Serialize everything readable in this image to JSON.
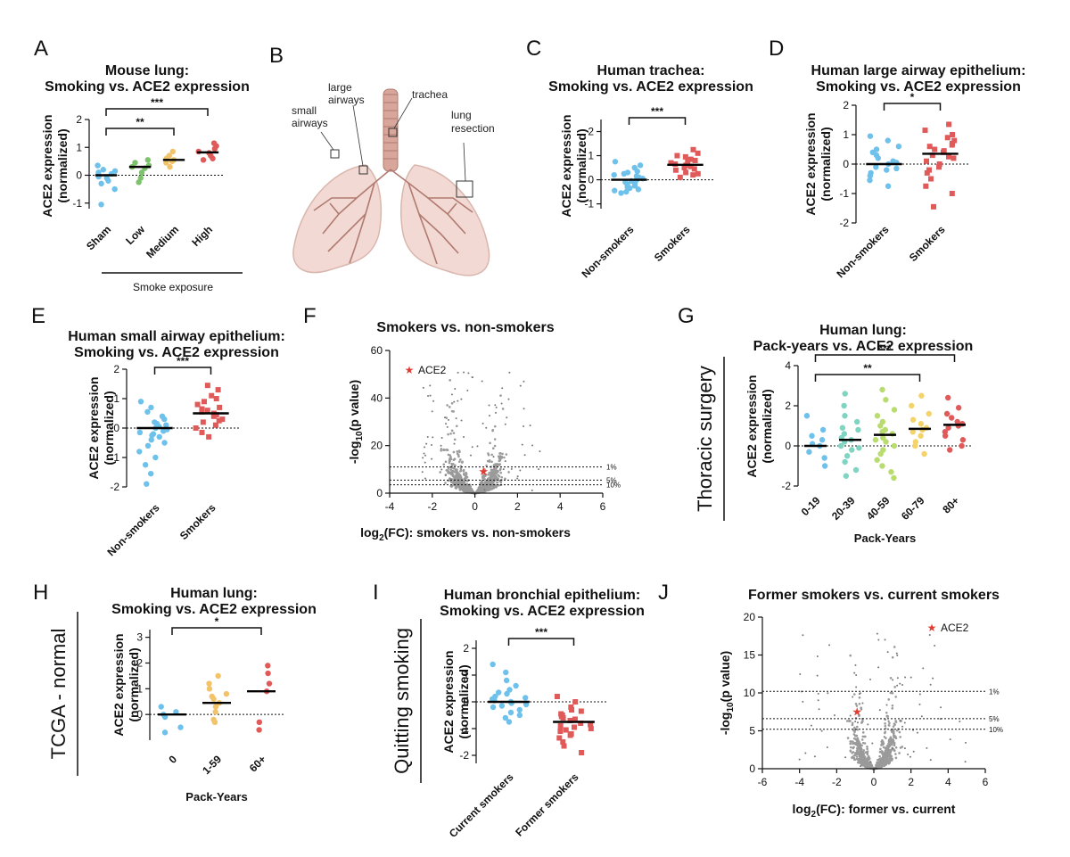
{
  "panels": [
    {
      "id": "A",
      "letter": "A",
      "type": "dot",
      "title": [
        "Mouse lung:",
        "Smoking vs. ACE2 expression"
      ],
      "ylabel": [
        "ACE2 expression",
        "(normalized)"
      ],
      "ylim": [
        -1.2,
        2
      ],
      "yticks": [
        -1,
        0,
        1,
        2
      ],
      "categories": [
        "Sham",
        "Low",
        "Medium",
        "High"
      ],
      "colors": [
        "#6ec1ea",
        "#7cc36b",
        "#f3c36a",
        "#e05a5a"
      ],
      "medians": [
        0,
        0.3,
        0.55,
        0.82
      ],
      "points": [
        [
          0.35,
          0.2,
          0.1,
          0.05,
          -0.05,
          -0.1,
          -0.2,
          -0.3,
          -0.5,
          -1.05,
          0.15
        ],
        [
          0.55,
          0.45,
          0.35,
          0.3,
          0.25,
          0.1,
          -0.1,
          -0.25
        ],
        [
          0.85,
          0.7,
          0.6,
          0.55,
          0.5,
          0.45,
          0.3
        ],
        [
          1.15,
          1.05,
          0.95,
          0.85,
          0.8,
          0.7,
          0.6,
          0.55
        ]
      ],
      "markers": "circle",
      "sig": [
        {
          "from": 0,
          "to": 2,
          "label": "**"
        },
        {
          "from": 0,
          "to": 3,
          "label": "***"
        }
      ],
      "group": "Smoke exposure",
      "xlabel": "",
      "side": ""
    },
    {
      "id": "C",
      "letter": "C",
      "type": "dot",
      "title": [
        "Human trachea:",
        "Smoking vs. ACE2 expression"
      ],
      "ylabel": [
        "ACE2 expression",
        "(normalized)"
      ],
      "ylim": [
        -1.2,
        2.5
      ],
      "yticks": [
        -1,
        0,
        1,
        2
      ],
      "categories": [
        "Non-smokers",
        "Smokers"
      ],
      "colors": [
        "#6ec1ea",
        "#e05a5a"
      ],
      "medians": [
        0,
        0.62
      ],
      "points": [
        [
          0.75,
          0.6,
          0.5,
          0.35,
          0.3,
          0.2,
          0.15,
          0.05,
          0,
          -0.05,
          -0.1,
          -0.15,
          -0.2,
          -0.25,
          -0.3,
          -0.35,
          -0.4,
          -0.45,
          0.1,
          -0.5,
          -0.55,
          0.25
        ],
        [
          1.25,
          1.1,
          1,
          0.95,
          0.85,
          0.8,
          0.75,
          0.7,
          0.65,
          0.6,
          0.55,
          0.5,
          0.45,
          0.4,
          0.3,
          0.25,
          0.2,
          0.1
        ]
      ],
      "markers": "circle-square",
      "sig": [
        {
          "from": 0,
          "to": 1,
          "label": "***"
        }
      ],
      "group": "",
      "xlabel": "",
      "side": ""
    },
    {
      "id": "D",
      "letter": "D",
      "type": "dot",
      "title": [
        "Human large airway epithelium:",
        "Smoking vs. ACE2 expression"
      ],
      "ylabel": [
        "ACE2 expression",
        "(normalized)"
      ],
      "ylim": [
        -2,
        2
      ],
      "yticks": [
        -2,
        -1,
        0,
        1,
        2
      ],
      "categories": [
        "Non-smokers",
        "Smokers"
      ],
      "colors": [
        "#6ec1ea",
        "#e05a5a"
      ],
      "medians": [
        0,
        0.35
      ],
      "points": [
        [
          0.95,
          0.8,
          0.6,
          0.5,
          0.4,
          0.3,
          0.2,
          0.1,
          0,
          -0.1,
          -0.2,
          -0.3,
          -0.4,
          -0.55,
          -0.75,
          0.05,
          -0.15
        ],
        [
          1.35,
          1.15,
          1,
          0.9,
          0.8,
          0.7,
          0.6,
          0.5,
          0.45,
          0.4,
          0.3,
          0.2,
          0.1,
          0,
          -0.1,
          -0.2,
          -0.3,
          -0.5,
          -0.75,
          -1,
          -1.45,
          0.65,
          0.25
        ]
      ],
      "markers": "circle-square",
      "sig": [
        {
          "from": 0,
          "to": 1,
          "label": "*"
        }
      ],
      "group": "",
      "xlabel": "",
      "side": ""
    },
    {
      "id": "E",
      "letter": "E",
      "type": "dot",
      "title": [
        "Human small airway epithelium:",
        "Smoking vs. ACE2 expression"
      ],
      "ylabel": [
        "ACE2 expression",
        "(normalized)"
      ],
      "ylim": [
        -2,
        2
      ],
      "yticks": [
        -2,
        -1,
        0,
        1,
        2
      ],
      "categories": [
        "Non-smokers",
        "Smokers"
      ],
      "colors": [
        "#6ec1ea",
        "#e05a5a"
      ],
      "medians": [
        0,
        0.5
      ],
      "points": [
        [
          0.9,
          0.7,
          0.55,
          0.4,
          0.3,
          0.2,
          0.1,
          0.05,
          0,
          -0.05,
          -0.1,
          -0.2,
          -0.3,
          -0.4,
          -0.5,
          -0.6,
          -0.8,
          -1,
          -1.25,
          -1.55,
          -1.9,
          0.15,
          -0.15,
          -0.25
        ],
        [
          1.45,
          1.3,
          1.1,
          1,
          0.9,
          0.8,
          0.7,
          0.6,
          0.5,
          0.45,
          0.4,
          0.3,
          0.2,
          0.1,
          0,
          -0.15,
          -0.3,
          0.55,
          0.25,
          0.65
        ]
      ],
      "markers": "circle-square",
      "sig": [
        {
          "from": 0,
          "to": 1,
          "label": "***"
        }
      ],
      "group": "",
      "xlabel": "",
      "side": ""
    },
    {
      "id": "G",
      "letter": "G",
      "type": "dot",
      "title": [
        "Human lung:",
        "Pack-years vs. ACE2 expression"
      ],
      "ylabel": [
        "ACE2 expression",
        "(normalized)"
      ],
      "ylim": [
        -2,
        4
      ],
      "yticks": [
        -2,
        0,
        2,
        4
      ],
      "categories": [
        "0-19",
        "20-39",
        "40-59",
        "60-79",
        "80+"
      ],
      "colors": [
        "#6ec1ea",
        "#7fd4c2",
        "#b9dc6e",
        "#f3d36a",
        "#e05a5a"
      ],
      "medians": [
        0,
        0.3,
        0.55,
        0.85,
        1.05
      ],
      "points": [
        [
          1.5,
          0.8,
          0.3,
          0,
          -0.3,
          -0.6,
          -1,
          0.1,
          0.5
        ],
        [
          2.6,
          2,
          1.5,
          1.2,
          0.9,
          0.6,
          0.4,
          0.2,
          0,
          -0.2,
          -0.5,
          -0.8,
          -1.2,
          -1.5,
          0.8,
          0.3,
          -0.1
        ],
        [
          2.8,
          2.3,
          1.8,
          1.5,
          1.2,
          1,
          0.8,
          0.6,
          0.4,
          0.2,
          0,
          -0.2,
          -0.4,
          -0.7,
          -1,
          -1.3,
          -1.6,
          0.7,
          0.3
        ],
        [
          2.5,
          2,
          1.6,
          1.3,
          1.1,
          0.9,
          0.7,
          0.5,
          0.2,
          0,
          -0.4,
          0.8
        ],
        [
          2.4,
          1.9,
          1.6,
          1.4,
          1.2,
          1,
          0.9,
          0.7,
          0.5,
          0.3,
          0,
          -0.2,
          1.1
        ]
      ],
      "markers": "circle",
      "sig": [
        {
          "from": 0,
          "to": 3,
          "label": "**"
        },
        {
          "from": 0,
          "to": 4,
          "label": "***"
        }
      ],
      "group": "",
      "xlabel": "Pack-Years",
      "side": "Thoracic surgery"
    },
    {
      "id": "H",
      "letter": "H",
      "type": "dot",
      "title": [
        "Human lung:",
        "Smoking vs. ACE2 expression"
      ],
      "ylabel": [
        "ACE2 expression",
        "(normalized)"
      ],
      "ylim": [
        -1,
        3.3
      ],
      "yticks": [
        0,
        1,
        2,
        3
      ],
      "categories": [
        "0",
        "1-59",
        "60+"
      ],
      "colors": [
        "#6ec1ea",
        "#f3c36a",
        "#e05a5a"
      ],
      "medians": [
        0,
        0.45,
        0.9
      ],
      "points": [
        [
          0.3,
          0.1,
          0,
          -0.1,
          -0.5,
          -0.7
        ],
        [
          1.5,
          1.2,
          1,
          0.8,
          0.6,
          0.45,
          0.3,
          0.1,
          -0.2,
          -0.3,
          0.7
        ],
        [
          1.9,
          1.6,
          1.2,
          0.9,
          -0.3,
          -0.6
        ]
      ],
      "markers": "circle",
      "sig": [
        {
          "from": 0,
          "to": 2,
          "label": "*"
        }
      ],
      "group": "",
      "xlabel": "Pack-Years",
      "side": "TCGA - normal"
    },
    {
      "id": "I",
      "letter": "I",
      "type": "dot",
      "title": [
        "Human bronchial epithelium:",
        "Smoking vs. ACE2 expression"
      ],
      "ylabel": [
        "ACE2 expression",
        "(normalized)"
      ],
      "ylim": [
        -2.3,
        2.3
      ],
      "yticks": [
        -2,
        -1,
        0,
        1,
        2
      ],
      "categories": [
        "Current smokers",
        "Former smokers"
      ],
      "colors": [
        "#6ec1ea",
        "#e05a5a"
      ],
      "medians": [
        0,
        -0.75
      ],
      "points": [
        [
          1.4,
          1.1,
          0.8,
          0.6,
          0.45,
          0.3,
          0.2,
          0.1,
          0.05,
          0,
          -0.05,
          -0.1,
          -0.2,
          -0.3,
          -0.4,
          -0.5,
          -0.6,
          -0.75,
          0.15,
          -0.15,
          0.35
        ],
        [
          0.2,
          0,
          -0.2,
          -0.35,
          -0.5,
          -0.6,
          -0.7,
          -0.8,
          -0.9,
          -1,
          -1.1,
          -1.2,
          -1.35,
          -1.5,
          -1.65,
          -1.9,
          -0.45,
          -0.65,
          -0.85,
          -1.05,
          -0.3,
          -0.55,
          -0.95,
          -1.25
        ]
      ],
      "markers": "circle-square",
      "sig": [
        {
          "from": 0,
          "to": 1,
          "label": "***"
        }
      ],
      "group": "",
      "xlabel": "",
      "side": "Quitting smoking"
    },
    {
      "id": "F",
      "letter": "F",
      "type": "volcano",
      "title": [
        "Smokers vs. non-smokers"
      ],
      "ylabel": "-log10(p value)",
      "xlabel": "log2(FC): smokers vs. non-smokers",
      "xlim": [
        -4,
        6
      ],
      "xticks": [
        -4,
        -2,
        0,
        2,
        4,
        6
      ],
      "ylim": [
        0,
        60
      ],
      "yticks": [
        0,
        20,
        40,
        60
      ],
      "thresholds": [
        {
          "y": 11,
          "label": "1%"
        },
        {
          "y": 5.5,
          "label": "5%"
        },
        {
          "y": 3.5,
          "label": "10%"
        }
      ],
      "highlight": {
        "name": "ACE2",
        "x": 0.4,
        "y": 9
      },
      "legend": "top-left",
      "side": "",
      "cloud_max": 52
    },
    {
      "id": "J",
      "letter": "J",
      "type": "volcano",
      "title": [
        "Former smokers vs. current smokers"
      ],
      "ylabel": "-log10(p value)",
      "xlabel": "log2(FC): former vs. current",
      "xlim": [
        -6,
        6
      ],
      "xticks": [
        -6,
        -4,
        -2,
        0,
        2,
        4,
        6
      ],
      "ylim": [
        0,
        20
      ],
      "yticks": [
        0,
        5,
        10,
        15,
        20
      ],
      "thresholds": [
        {
          "y": 10.2,
          "label": "1%"
        },
        {
          "y": 6.6,
          "label": "5%"
        },
        {
          "y": 5.2,
          "label": "10%"
        }
      ],
      "highlight": {
        "name": "ACE2",
        "x": -0.9,
        "y": 7.5
      },
      "legend": "top-right",
      "side": "",
      "cloud_max": 18
    }
  ],
  "diagram": {
    "letter": "B",
    "labels": [
      "large",
      "airways",
      "small",
      "airways",
      "trachea",
      "lung",
      "resection"
    ]
  },
  "colors": {
    "axis": "#111111",
    "cloud": "#9a9a9a",
    "highlight": "#e03c31",
    "lung": "#f2d9d3",
    "airway": "#b07a70"
  }
}
